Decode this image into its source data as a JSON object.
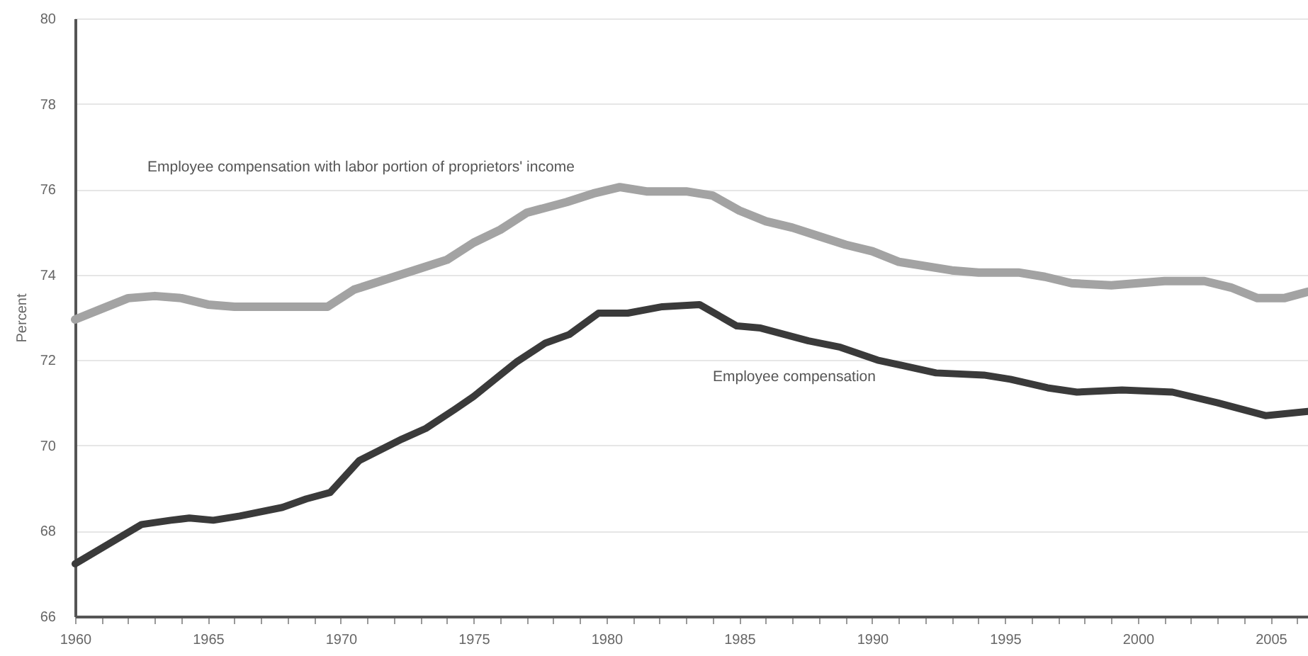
{
  "chart_data": {
    "type": "line",
    "ylabel": "Percent",
    "xlim": [
      1960,
      2006.4
    ],
    "xticks": [
      1960,
      {
        "value": 1961,
        "label": null
      },
      {
        "value": 1962,
        "label": null
      },
      {
        "value": 1963,
        "label": null
      },
      {
        "value": 1964,
        "label": null
      },
      1965,
      {
        "value": 1966,
        "label": null
      },
      {
        "value": 1967,
        "label": null
      },
      {
        "value": 1968,
        "label": null
      },
      {
        "value": 1969,
        "label": null
      },
      1970,
      {
        "value": 1971,
        "label": null
      },
      {
        "value": 1972,
        "label": null
      },
      {
        "value": 1973,
        "label": null
      },
      {
        "value": 1974,
        "label": null
      },
      1975,
      {
        "value": 1976,
        "label": null
      },
      {
        "value": 1977,
        "label": null
      },
      {
        "value": 1978,
        "label": null
      },
      {
        "value": 1979,
        "label": null
      },
      1980,
      {
        "value": 1981,
        "label": null
      },
      {
        "value": 1982,
        "label": null
      },
      {
        "value": 1983,
        "label": null
      },
      {
        "value": 1984,
        "label": null
      },
      1985,
      {
        "value": 1986,
        "label": null
      },
      {
        "value": 1987,
        "label": null
      },
      {
        "value": 1988,
        "label": null
      },
      {
        "value": 1989,
        "label": null
      },
      1990,
      {
        "value": 1991,
        "label": null
      },
      {
        "value": 1992,
        "label": null
      },
      {
        "value": 1993,
        "label": null
      },
      {
        "value": 1994,
        "label": null
      },
      1995,
      {
        "value": 1996,
        "label": null
      },
      {
        "value": 1997,
        "label": null
      },
      {
        "value": 1998,
        "label": null
      },
      {
        "value": 1999,
        "label": null
      },
      2000,
      {
        "value": 2001,
        "label": null
      },
      {
        "value": 2002,
        "label": null
      },
      {
        "value": 2003,
        "label": null
      },
      {
        "value": 2004,
        "label": null
      },
      2005,
      {
        "value": 2006,
        "label": null
      }
    ],
    "ylim": [
      66,
      80
    ],
    "yticks": [
      66,
      68,
      70,
      72,
      74,
      76,
      78,
      80
    ],
    "grid": "y",
    "line_style": "solid",
    "marker": "none",
    "series": [
      {
        "color": "#a3a3a3",
        "x": [
          1960,
          1961,
          1962,
          1963,
          1964,
          1965,
          1966,
          1968,
          1969.5,
          1970.5,
          1971.5,
          1973,
          1974,
          1975,
          1976,
          1977,
          1978.5,
          1979.5,
          1980.5,
          1981.5,
          1983,
          1984,
          1985,
          1986,
          1987,
          1988,
          1989,
          1990,
          1991,
          1992,
          1993,
          1994,
          1995.5,
          1996.5,
          1997.5,
          1999,
          2001,
          2002.5,
          2003.5,
          2004.5,
          2005.5,
          2006.4
        ],
        "values": [
          72.95,
          73.2,
          73.45,
          73.5,
          73.45,
          73.3,
          73.25,
          73.25,
          73.25,
          73.65,
          73.85,
          74.15,
          74.35,
          74.75,
          75.05,
          75.45,
          75.7,
          75.9,
          76.05,
          75.95,
          75.95,
          75.85,
          75.5,
          75.25,
          75.1,
          74.9,
          74.7,
          74.55,
          74.3,
          74.2,
          74.1,
          74.05,
          74.05,
          73.95,
          73.8,
          73.75,
          73.85,
          73.85,
          73.7,
          73.45,
          73.45,
          73.6
        ]
      },
      {
        "color": "#3a3a3a",
        "x": [
          1960,
          1962.5,
          1963.6,
          1964.3,
          1965.2,
          1966.2,
          1967.8,
          1968.7,
          1969.6,
          1970.7,
          1972.3,
          1973.2,
          1974.3,
          1975,
          1975.9,
          1976.6,
          1977.7,
          1978.6,
          1979.7,
          1980.3,
          1980.8,
          1982.1,
          1983.5,
          1984.9,
          1985.8,
          1987.6,
          1988.8,
          1990.2,
          1992.4,
          1994.2,
          1995.2,
          1996.6,
          1997.7,
          1999.4,
          2001.3,
          2003,
          2004.8,
          2006.4
        ],
        "values": [
          67.23,
          68.15,
          68.25,
          68.3,
          68.25,
          68.35,
          68.55,
          68.75,
          68.9,
          69.65,
          70.15,
          70.4,
          70.85,
          71.15,
          71.6,
          71.95,
          72.4,
          72.6,
          73.1,
          73.1,
          73.1,
          73.25,
          73.3,
          72.8,
          72.75,
          72.45,
          72.3,
          72.0,
          71.7,
          71.65,
          71.55,
          71.35,
          71.25,
          71.3,
          71.25,
          71.0,
          70.7,
          70.8
        ]
      }
    ],
    "annotations": [
      "Employee compensation with labor portion  of proprietors' income",
      "Employee compensation"
    ]
  }
}
